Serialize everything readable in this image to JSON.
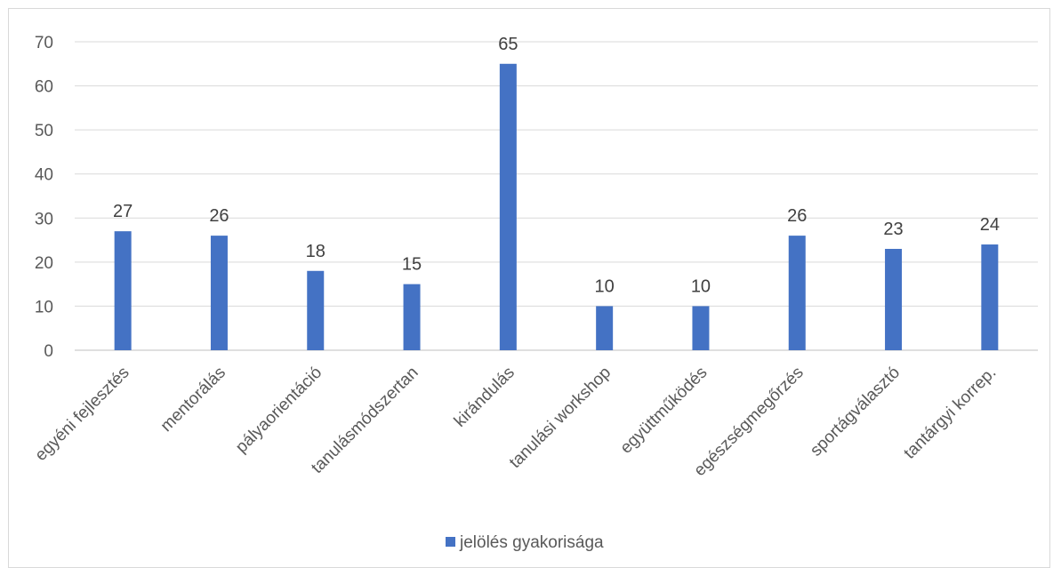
{
  "chart_data": {
    "type": "bar",
    "categories": [
      "egyéni fejlesztés",
      "mentorálás",
      "pályaorientáció",
      "tanulásmódszertan",
      "kirándulás",
      "tanulási workshop",
      "együttműködés",
      "egészségmegőrzés",
      "sportágválasztó",
      "tantárgyi korrep."
    ],
    "series": [
      {
        "name": "jelölés gyakorisága",
        "values": [
          27,
          26,
          18,
          15,
          65,
          10,
          10,
          26,
          23,
          24
        ],
        "color": "#4472c4"
      }
    ],
    "yticks": [
      0,
      10,
      20,
      30,
      40,
      50,
      60,
      70
    ],
    "ylim": [
      0,
      70
    ],
    "grid": true,
    "data_labels": true,
    "legend": "bottom"
  }
}
